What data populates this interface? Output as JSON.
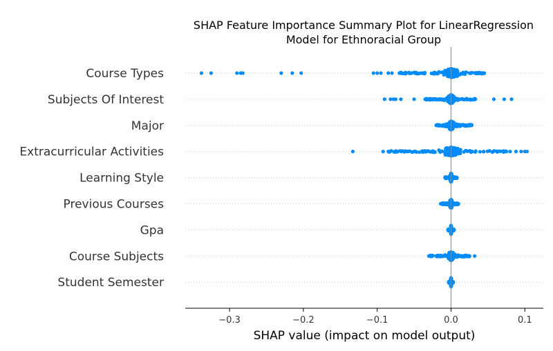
{
  "chart_data": {
    "type": "scatter",
    "title_lines": [
      "SHAP Feature Importance Summary Plot for LinearRegression",
      "Model for Ethnoracial Group"
    ],
    "xlabel": "SHAP value (impact on model output)",
    "xlim": [
      -0.36,
      0.125
    ],
    "xticks": [
      -0.3,
      -0.2,
      -0.1,
      0.0,
      0.1
    ],
    "xtick_labels": [
      "−0.3",
      "−0.2",
      "−0.1",
      "0.0",
      "0.1"
    ],
    "grid": "dotted-rows",
    "point_color": "#008bfb",
    "zero_line_color": "#999999",
    "features": [
      {
        "name": "Course Types",
        "dense_range": [
          -0.07,
          0.045
        ],
        "outliers": [
          -0.338,
          -0.325,
          -0.29,
          -0.285,
          -0.282,
          -0.23,
          -0.215,
          -0.203,
          -0.105,
          -0.1,
          -0.095,
          -0.085,
          -0.08
        ]
      },
      {
        "name": "Subjects Of Interest",
        "dense_range": [
          -0.035,
          0.033
        ],
        "outliers": [
          -0.09,
          -0.082,
          -0.078,
          -0.075,
          -0.068,
          -0.05,
          0.058,
          0.072,
          0.082
        ]
      },
      {
        "name": "Major",
        "dense_range": [
          -0.02,
          0.028
        ],
        "outliers": []
      },
      {
        "name": "Extracurricular Activities",
        "dense_range": [
          -0.085,
          0.075
        ],
        "outliers": [
          -0.133,
          -0.092,
          0.08,
          0.088,
          0.095,
          0.1,
          0.103
        ]
      },
      {
        "name": "Learning Style",
        "dense_range": [
          -0.008,
          0.008
        ],
        "outliers": []
      },
      {
        "name": "Previous Courses",
        "dense_range": [
          -0.014,
          0.01
        ],
        "outliers": []
      },
      {
        "name": "Gpa",
        "dense_range": [
          -0.004,
          0.004
        ],
        "outliers": []
      },
      {
        "name": "Course Subjects",
        "dense_range": [
          -0.03,
          0.025
        ],
        "outliers": [
          0.032
        ]
      },
      {
        "name": "Student Semester",
        "dense_range": [
          -0.003,
          0.003
        ],
        "outliers": []
      }
    ]
  }
}
